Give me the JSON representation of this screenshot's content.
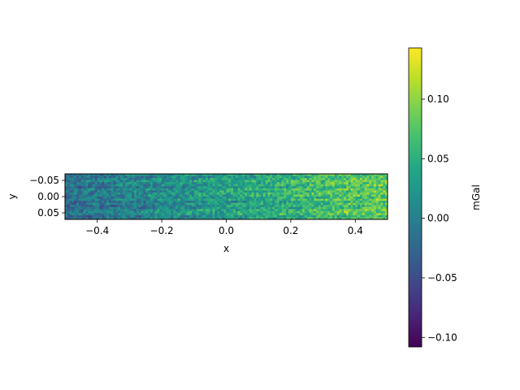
{
  "chart_data": {
    "type": "heatmap",
    "title": "",
    "xlabel": "x",
    "ylabel": "y",
    "xlim": [
      -0.5,
      0.5
    ],
    "ylim": [
      0.07,
      -0.07
    ],
    "y_axis_inverted": true,
    "x_ticks": [
      {
        "value": -0.4,
        "label": "−0.4"
      },
      {
        "value": -0.2,
        "label": "−0.2"
      },
      {
        "value": 0.0,
        "label": "0.0"
      },
      {
        "value": 0.2,
        "label": "0.2"
      },
      {
        "value": 0.4,
        "label": "0.4"
      }
    ],
    "y_ticks": [
      {
        "value": -0.05,
        "label": "−0.05"
      },
      {
        "value": 0.0,
        "label": "0.00"
      },
      {
        "value": 0.05,
        "label": "0.05"
      }
    ],
    "colormap": "viridis",
    "colorbar": {
      "label": "mGal",
      "min": -0.108,
      "max": 0.143,
      "ticks": [
        {
          "value": 0.1,
          "label": "0.10"
        },
        {
          "value": 0.05,
          "label": "0.05"
        },
        {
          "value": 0.0,
          "label": "0.00"
        },
        {
          "value": -0.05,
          "label": "−0.05"
        },
        {
          "value": -0.1,
          "label": "−0.10"
        }
      ]
    },
    "field_trend": "noisy field, mean rising from about -0.02 mGal at x=-0.5 to about 0.08 mGal at x=0.5",
    "grid": false
  }
}
